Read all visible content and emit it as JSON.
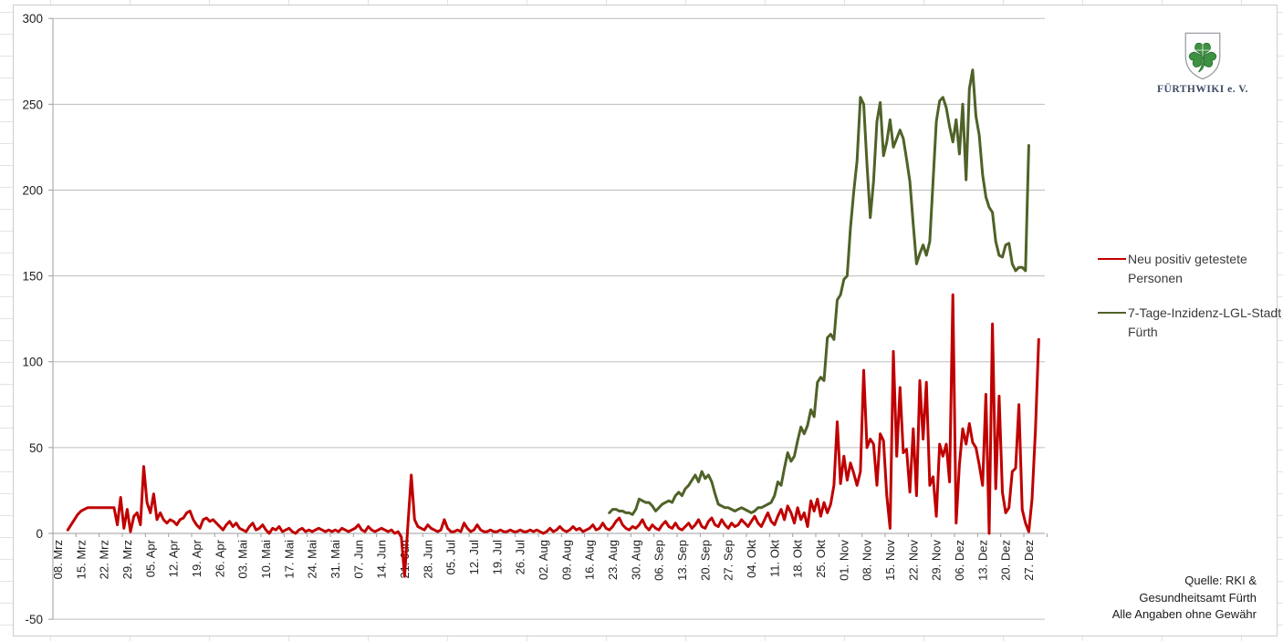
{
  "chart_data": {
    "type": "line",
    "title": "",
    "xlabel": "",
    "ylabel": "",
    "ylim": [
      -50,
      300
    ],
    "y_ticks": [
      300,
      250,
      200,
      150,
      100,
      50,
      0,
      -50
    ],
    "grid": "horizontal",
    "legend_position": "right",
    "tick_interval_days": 7,
    "x_tick_labels": [
      "08. Mrz",
      "15. Mrz",
      "22. Mrz",
      "29. Mrz",
      "05. Apr",
      "12. Apr",
      "19. Apr",
      "26. Apr",
      "03. Mai",
      "10. Mai",
      "17. Mai",
      "24. Mai",
      "31. Mai",
      "07. Jun",
      "14. Jun",
      "21. Jun",
      "28. Jun",
      "05. Jul",
      "12. Jul",
      "19. Jul",
      "26. Jul",
      "02. Aug",
      "09. Aug",
      "16. Aug",
      "23. Aug",
      "30. Aug",
      "06. Sep",
      "13. Sep",
      "20. Sep",
      "27. Sep",
      "04. Okt",
      "11. Okt",
      "18. Okt",
      "25. Okt",
      "01. Nov",
      "08. Nov",
      "15. Nov",
      "22. Nov",
      "29. Nov",
      "06. Dez",
      "13. Dez",
      "20. Dez",
      "27. Dez"
    ],
    "colors": {
      "gridline": "#bdbdbd",
      "axis": "#9e9e9e",
      "label": "#1f1f1f"
    },
    "series": [
      {
        "id": "neu-positiv",
        "name": "Neu positiv getestete Personen",
        "color": "#c00000",
        "start_day": 4,
        "values": [
          2,
          5,
          8,
          11,
          13,
          14,
          15,
          15,
          15,
          15,
          15,
          15,
          15,
          15,
          15,
          5,
          21,
          3,
          14,
          1,
          10,
          12,
          5,
          39,
          18,
          12,
          23,
          8,
          12,
          8,
          6,
          8,
          7,
          5,
          8,
          9,
          12,
          13,
          8,
          5,
          3,
          8,
          9,
          7,
          8,
          6,
          4,
          2,
          5,
          7,
          4,
          6,
          3,
          2,
          1,
          4,
          6,
          2,
          3,
          5,
          2,
          0,
          3,
          2,
          4,
          1,
          2,
          3,
          1,
          0,
          2,
          3,
          1,
          2,
          1,
          2,
          3,
          2,
          1,
          2,
          1,
          2,
          1,
          3,
          2,
          1,
          2,
          3,
          5,
          2,
          1,
          4,
          2,
          1,
          2,
          3,
          2,
          1,
          2,
          0,
          1,
          -2,
          -25,
          5,
          34,
          8,
          4,
          3,
          2,
          5,
          3,
          2,
          1,
          2,
          8,
          3,
          1,
          1,
          2,
          1,
          6,
          3,
          1,
          2,
          5,
          2,
          1,
          1,
          2,
          1,
          1,
          2,
          1,
          1,
          2,
          1,
          1,
          2,
          1,
          1,
          2,
          1,
          2,
          1,
          0,
          1,
          3,
          1,
          2,
          4,
          2,
          1,
          2,
          4,
          2,
          3,
          1,
          2,
          3,
          5,
          2,
          3,
          6,
          3,
          2,
          4,
          7,
          9,
          5,
          3,
          2,
          4,
          3,
          5,
          8,
          4,
          2,
          5,
          3,
          2,
          5,
          7,
          4,
          3,
          6,
          3,
          2,
          4,
          6,
          3,
          5,
          8,
          4,
          3,
          7,
          9,
          5,
          4,
          8,
          5,
          3,
          6,
          4,
          5,
          8,
          6,
          4,
          7,
          10,
          6,
          4,
          8,
          12,
          7,
          5,
          10,
          14,
          8,
          16,
          12,
          6,
          15,
          8,
          12,
          4,
          19,
          13,
          20,
          10,
          18,
          12,
          17,
          28,
          65,
          29,
          45,
          31,
          41,
          35,
          28,
          36,
          95,
          50,
          55,
          52,
          28,
          58,
          54,
          22,
          3,
          106,
          45,
          85,
          47,
          49,
          24,
          61,
          22,
          89,
          55,
          88,
          28,
          33,
          10,
          52,
          45,
          52,
          30,
          139,
          6,
          40,
          61,
          52,
          64,
          53,
          50,
          40,
          28,
          81,
          0,
          122,
          26,
          80,
          24,
          12,
          15,
          36,
          38,
          75,
          14,
          6,
          1,
          20,
          60,
          113
        ]
      },
      {
        "id": "inzidenz",
        "name": "7-Tage-Inzidenz-LGL-Stadt Fürth",
        "color": "#4f6228",
        "start_day": 168,
        "values": [
          12,
          14,
          14,
          13,
          13,
          12,
          12,
          11,
          14,
          20,
          19,
          18,
          18,
          16,
          13,
          15,
          17,
          18,
          19,
          18,
          22,
          24,
          22,
          26,
          28,
          31,
          34,
          30,
          36,
          32,
          34,
          30,
          23,
          17,
          16,
          15,
          15,
          14,
          13,
          14,
          15,
          14,
          13,
          12,
          13,
          15,
          15,
          16,
          17,
          18,
          22,
          30,
          28,
          38,
          47,
          42,
          45,
          54,
          62,
          58,
          63,
          72,
          68,
          88,
          91,
          89,
          114,
          116,
          113,
          136,
          139,
          148,
          150,
          178,
          199,
          217,
          254,
          250,
          215,
          184,
          205,
          240,
          251,
          220,
          228,
          241,
          225,
          230,
          235,
          230,
          218,
          205,
          180,
          157,
          163,
          168,
          162,
          170,
          205,
          240,
          252,
          254,
          248,
          237,
          228,
          241,
          221,
          250,
          206,
          259,
          270,
          243,
          232,
          209,
          196,
          190,
          187,
          170,
          162,
          161,
          168,
          169,
          157,
          153,
          155,
          155,
          153,
          226
        ]
      }
    ]
  },
  "logo": {
    "caption": "FÜRTHWIKI e. V.",
    "symbol": "shamrock-shield"
  },
  "source_note": {
    "lines": [
      "Quelle: RKI &",
      "Gesundheitsamt Fürth",
      "Alle Angaben ohne Gewähr"
    ]
  }
}
